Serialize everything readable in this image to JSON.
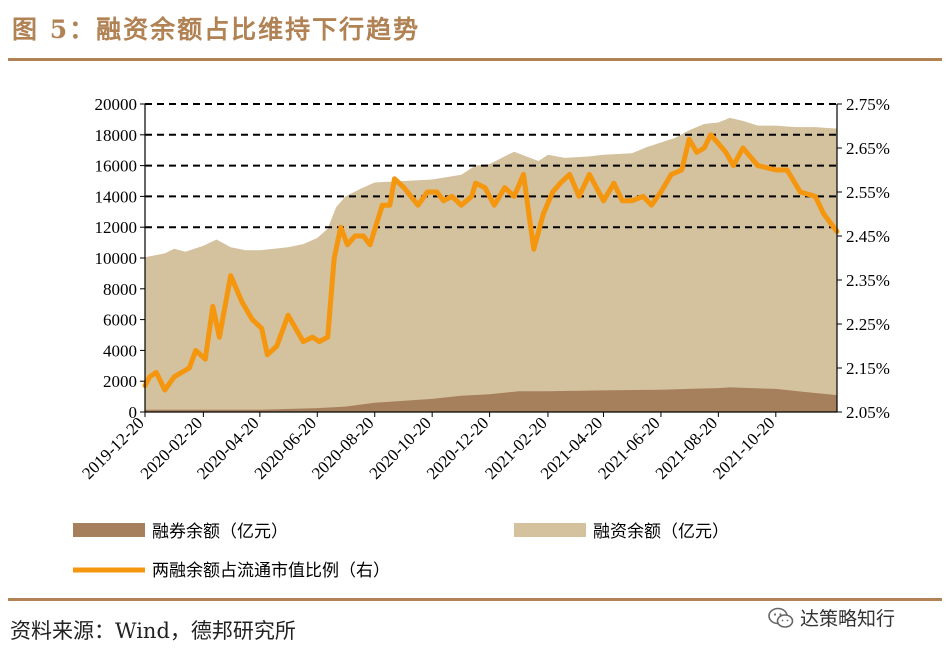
{
  "title": "图 5：融资余额占比维持下行趋势",
  "source": "资料来源：Wind，德邦研究所",
  "watermark": {
    "text": "达策略知行",
    "icon": "wechat-icon"
  },
  "colors": {
    "accent": "#b08254",
    "margin_financing": "#d4c19e",
    "short_selling": "#a67f5d",
    "ratio_line": "#f5960f"
  },
  "chart_data": {
    "type": "area",
    "x_tick_labels": [
      "2019-12-20",
      "2020-02-20",
      "2020-04-20",
      "2020-06-20",
      "2020-08-20",
      "2020-10-20",
      "2020-12-20",
      "2021-02-20",
      "2021-04-20",
      "2021-06-20",
      "2021-08-20",
      "2021-10-20"
    ],
    "x_start": "2019-12-20",
    "x_end": "2021-12-24",
    "y_left": {
      "min": 0,
      "max": 20000,
      "step": 2000,
      "tick_labels": [
        "0",
        "2000",
        "4000",
        "6000",
        "8000",
        "10000",
        "12000",
        "14000",
        "16000",
        "18000",
        "20000"
      ]
    },
    "y_right": {
      "min": 2.05,
      "max": 2.75,
      "step": 0.1,
      "tick_labels": [
        "2.05%",
        "2.15%",
        "2.25%",
        "2.35%",
        "2.45%",
        "2.55%",
        "2.65%",
        "2.75%"
      ]
    },
    "grid": "dashed horizontal lines at 12000-20000 (left axis)",
    "legend_placement": "bottom",
    "series": [
      {
        "name": "融券余额（亿元）",
        "type": "area",
        "axis": "left",
        "points": [
          [
            "2019-12-20",
            150
          ],
          [
            "2020-02-20",
            150
          ],
          [
            "2020-04-20",
            150
          ],
          [
            "2020-06-20",
            250
          ],
          [
            "2020-07-20",
            350
          ],
          [
            "2020-08-20",
            600
          ],
          [
            "2020-10-20",
            850
          ],
          [
            "2020-11-20",
            1050
          ],
          [
            "2020-12-20",
            1150
          ],
          [
            "2021-01-20",
            1350
          ],
          [
            "2021-02-20",
            1350
          ],
          [
            "2021-04-20",
            1400
          ],
          [
            "2021-06-20",
            1450
          ],
          [
            "2021-07-20",
            1500
          ],
          [
            "2021-08-20",
            1550
          ],
          [
            "2021-09-01",
            1600
          ],
          [
            "2021-10-20",
            1500
          ],
          [
            "2021-11-20",
            1300
          ],
          [
            "2021-12-24",
            1100
          ]
        ]
      },
      {
        "name": "融资余额（亿元）",
        "type": "area",
        "axis": "left",
        "points": [
          [
            "2019-12-20",
            10050
          ],
          [
            "2020-01-10",
            10300
          ],
          [
            "2020-01-20",
            10600
          ],
          [
            "2020-02-01",
            10400
          ],
          [
            "2020-02-20",
            10800
          ],
          [
            "2020-03-05",
            11200
          ],
          [
            "2020-03-20",
            10700
          ],
          [
            "2020-04-05",
            10500
          ],
          [
            "2020-04-20",
            10500
          ],
          [
            "2020-05-05",
            10600
          ],
          [
            "2020-05-20",
            10700
          ],
          [
            "2020-06-05",
            10900
          ],
          [
            "2020-06-20",
            11300
          ],
          [
            "2020-07-01",
            11900
          ],
          [
            "2020-07-10",
            13300
          ],
          [
            "2020-07-20",
            14000
          ],
          [
            "2020-08-05",
            14500
          ],
          [
            "2020-08-20",
            14900
          ],
          [
            "2020-09-20",
            15000
          ],
          [
            "2020-10-20",
            15100
          ],
          [
            "2020-11-20",
            15400
          ],
          [
            "2020-12-05",
            16000
          ],
          [
            "2020-12-20",
            16100
          ],
          [
            "2021-01-05",
            16600
          ],
          [
            "2021-01-15",
            16900
          ],
          [
            "2021-02-01",
            16500
          ],
          [
            "2021-02-10",
            16300
          ],
          [
            "2021-02-20",
            16700
          ],
          [
            "2021-03-10",
            16500
          ],
          [
            "2021-04-05",
            16600
          ],
          [
            "2021-04-20",
            16700
          ],
          [
            "2021-05-20",
            16800
          ],
          [
            "2021-06-05",
            17200
          ],
          [
            "2021-06-20",
            17500
          ],
          [
            "2021-07-05",
            17800
          ],
          [
            "2021-07-20",
            18300
          ],
          [
            "2021-08-05",
            18700
          ],
          [
            "2021-08-20",
            18800
          ],
          [
            "2021-09-01",
            19100
          ],
          [
            "2021-09-15",
            18900
          ],
          [
            "2021-10-01",
            18600
          ],
          [
            "2021-10-20",
            18600
          ],
          [
            "2021-11-10",
            18500
          ],
          [
            "2021-12-01",
            18500
          ],
          [
            "2021-12-24",
            18400
          ]
        ]
      },
      {
        "name": "两融余额占流通市值比例（右）",
        "type": "line",
        "axis": "right",
        "points": [
          [
            "2019-12-20",
            2.11
          ],
          [
            "2019-12-25",
            2.13
          ],
          [
            "2020-01-01",
            2.14
          ],
          [
            "2020-01-10",
            2.1
          ],
          [
            "2020-01-20",
            2.13
          ],
          [
            "2020-02-05",
            2.15
          ],
          [
            "2020-02-12",
            2.19
          ],
          [
            "2020-02-22",
            2.17
          ],
          [
            "2020-03-01",
            2.29
          ],
          [
            "2020-03-08",
            2.22
          ],
          [
            "2020-03-20",
            2.36
          ],
          [
            "2020-04-01",
            2.3
          ],
          [
            "2020-04-12",
            2.26
          ],
          [
            "2020-04-22",
            2.24
          ],
          [
            "2020-04-28",
            2.18
          ],
          [
            "2020-05-08",
            2.2
          ],
          [
            "2020-05-20",
            2.27
          ],
          [
            "2020-06-05",
            2.21
          ],
          [
            "2020-06-15",
            2.22
          ],
          [
            "2020-06-22",
            2.21
          ],
          [
            "2020-07-01",
            2.22
          ],
          [
            "2020-07-08",
            2.4
          ],
          [
            "2020-07-15",
            2.47
          ],
          [
            "2020-07-22",
            2.43
          ],
          [
            "2020-07-30",
            2.45
          ],
          [
            "2020-08-08",
            2.45
          ],
          [
            "2020-08-15",
            2.43
          ],
          [
            "2020-08-28",
            2.52
          ],
          [
            "2020-09-05",
            2.52
          ],
          [
            "2020-09-10",
            2.58
          ],
          [
            "2020-09-20",
            2.56
          ],
          [
            "2020-10-05",
            2.52
          ],
          [
            "2020-10-15",
            2.55
          ],
          [
            "2020-10-25",
            2.55
          ],
          [
            "2020-11-01",
            2.53
          ],
          [
            "2020-11-10",
            2.54
          ],
          [
            "2020-11-20",
            2.52
          ],
          [
            "2020-12-01",
            2.54
          ],
          [
            "2020-12-05",
            2.57
          ],
          [
            "2020-12-15",
            2.56
          ],
          [
            "2020-12-25",
            2.52
          ],
          [
            "2021-01-05",
            2.56
          ],
          [
            "2021-01-15",
            2.54
          ],
          [
            "2021-01-25",
            2.59
          ],
          [
            "2021-02-01",
            2.48
          ],
          [
            "2021-02-05",
            2.42
          ],
          [
            "2021-02-15",
            2.5
          ],
          [
            "2021-02-25",
            2.55
          ],
          [
            "2021-03-05",
            2.57
          ],
          [
            "2021-03-15",
            2.59
          ],
          [
            "2021-03-25",
            2.54
          ],
          [
            "2021-04-05",
            2.59
          ],
          [
            "2021-04-20",
            2.53
          ],
          [
            "2021-05-01",
            2.57
          ],
          [
            "2021-05-10",
            2.53
          ],
          [
            "2021-05-20",
            2.53
          ],
          [
            "2021-06-01",
            2.54
          ],
          [
            "2021-06-10",
            2.52
          ],
          [
            "2021-06-20",
            2.55
          ],
          [
            "2021-07-01",
            2.59
          ],
          [
            "2021-07-12",
            2.6
          ],
          [
            "2021-07-20",
            2.67
          ],
          [
            "2021-07-28",
            2.64
          ],
          [
            "2021-08-05",
            2.65
          ],
          [
            "2021-08-12",
            2.68
          ],
          [
            "2021-08-20",
            2.66
          ],
          [
            "2021-08-28",
            2.64
          ],
          [
            "2021-09-05",
            2.61
          ],
          [
            "2021-09-15",
            2.65
          ],
          [
            "2021-10-01",
            2.61
          ],
          [
            "2021-10-20",
            2.6
          ],
          [
            "2021-11-01",
            2.6
          ],
          [
            "2021-11-15",
            2.55
          ],
          [
            "2021-12-01",
            2.54
          ],
          [
            "2021-12-10",
            2.5
          ],
          [
            "2021-12-24",
            2.46
          ]
        ]
      }
    ]
  }
}
